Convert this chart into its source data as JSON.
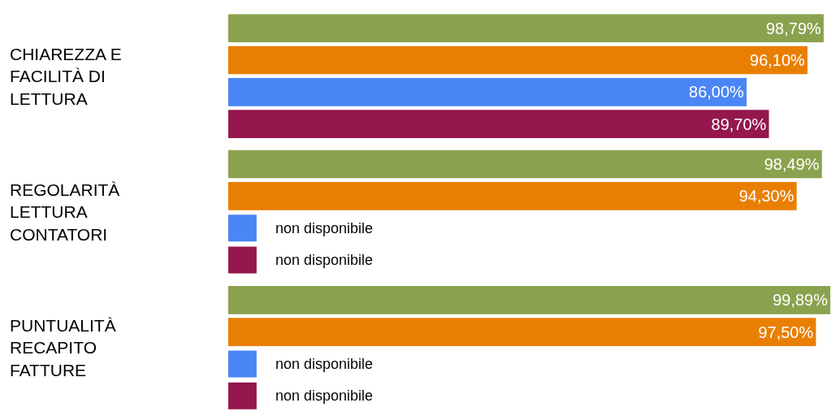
{
  "chart_data": {
    "type": "bar",
    "orientation": "horizontal",
    "categories": [
      "CHIAREZZA E\nFACILITÀ DI\nLETTURA",
      "REGOLARITÀ\nLETTURA\nCONTATORI",
      "PUNTUALITÀ\nRECAPITO\nFATTURE"
    ],
    "series": [
      {
        "color": "#8aa24e",
        "values": [
          98.79,
          98.49,
          99.89
        ],
        "value_labels": [
          "98,79%",
          "98,49%",
          "99,89%"
        ]
      },
      {
        "color": "#e97f02",
        "values": [
          96.1,
          94.3,
          97.5
        ],
        "value_labels": [
          "96,10%",
          "94,30%",
          "97,50%"
        ]
      },
      {
        "color": "#4a86f5",
        "values": [
          86.0,
          null,
          null
        ],
        "value_labels": [
          "86,00%",
          "non disponibile",
          "non disponibile"
        ]
      },
      {
        "color": "#94174d",
        "values": [
          89.7,
          null,
          null
        ],
        "value_labels": [
          "89,70%",
          "non disponibile",
          "non disponibile"
        ]
      }
    ],
    "xlim": [
      0,
      100
    ],
    "tick_labels": "y",
    "legend": false
  }
}
